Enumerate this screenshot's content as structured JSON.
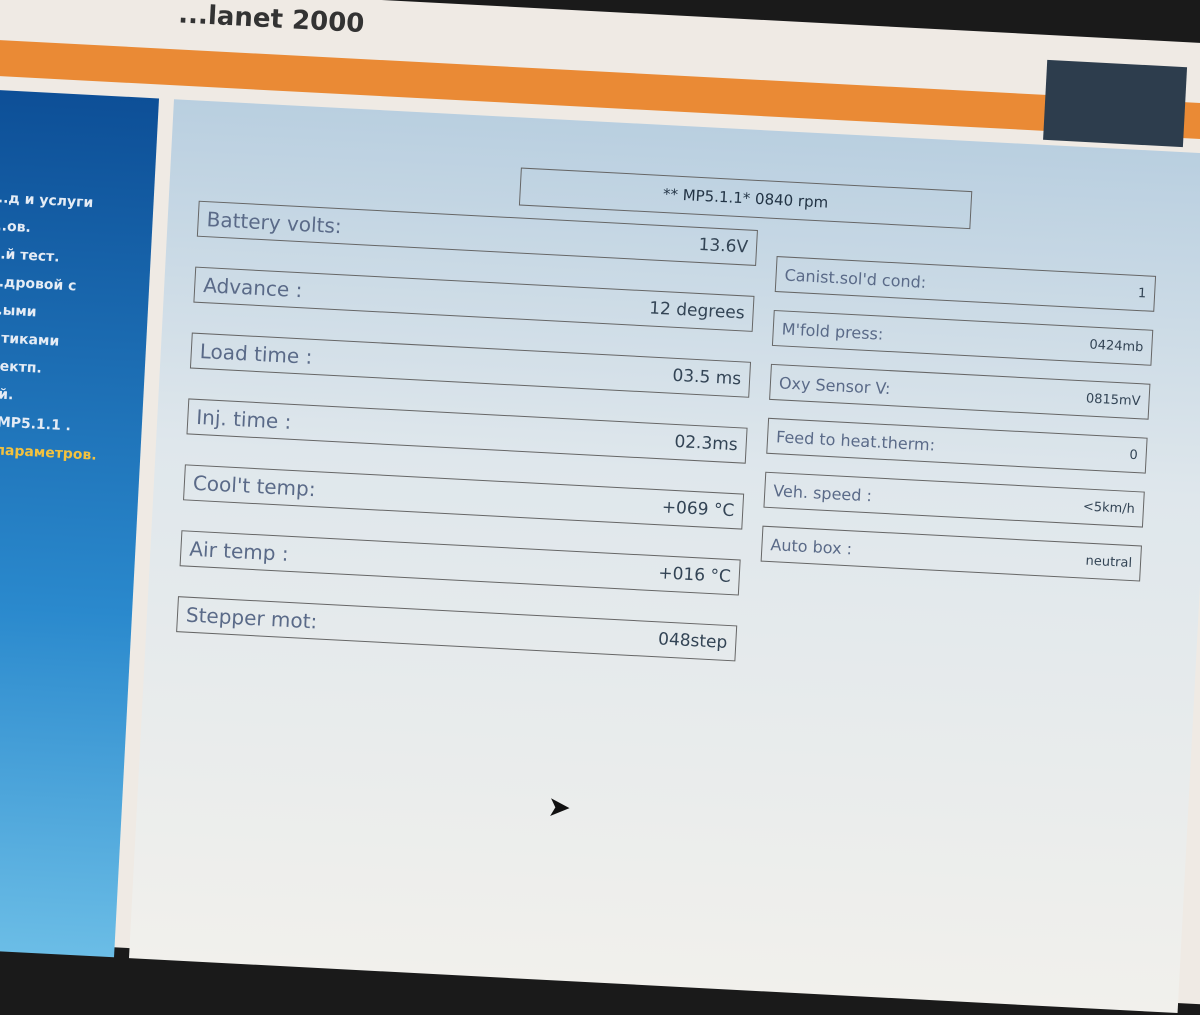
{
  "window": {
    "title": "...lanet 2000"
  },
  "sidebar": {
    "items": [
      "...д и услуги",
      "...ов.",
      "...й тест.",
      "...дровой с",
      "...ыми",
      "...тиками",
      "...ектп.",
      "...й.",
      "...MP5.1.1 .",
      "...параметров."
    ],
    "highlighted_index": 9
  },
  "header": {
    "text": "** MP5.1.1* 0840 rpm"
  },
  "left_params": [
    {
      "label": "Battery volts:",
      "value": "13.6V"
    },
    {
      "label": "Advance :",
      "value": "12 degrees"
    },
    {
      "label": "Load time :",
      "value": "03.5 ms"
    },
    {
      "label": "Inj. time   :",
      "value": "02.3ms"
    },
    {
      "label": "Cool't temp:",
      "value": "+069 °C"
    },
    {
      "label": "Air temp   :",
      "value": "+016 °C"
    },
    {
      "label": "Stepper mot:",
      "value": "048step"
    }
  ],
  "right_params": [
    {
      "label": "Canist.sol'd cond:",
      "value": "1"
    },
    {
      "label": "M'fold press:",
      "value": "0424mb"
    },
    {
      "label": "Oxy Sensor V:",
      "value": "0815mV"
    },
    {
      "label": "Feed to heat.therm:",
      "value": "0"
    },
    {
      "label": "Veh. speed :",
      "value": "<5km/h"
    },
    {
      "label": "Auto box :",
      "value": "neutral"
    }
  ],
  "colors": {
    "accent": "#ea8a35",
    "sidebar": "#1a6db5",
    "highlight": "#f3c23e"
  }
}
